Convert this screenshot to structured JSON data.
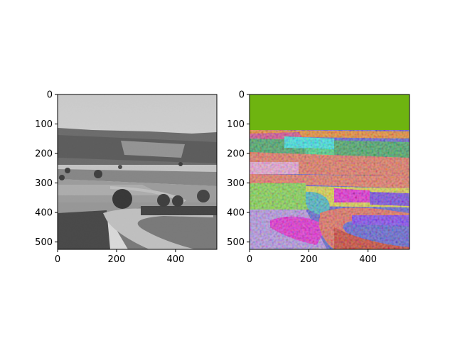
{
  "chart_data": [
    {
      "type": "image",
      "panel": "left",
      "content": "grayscale photograph of a rural landscape: bright sky, hillside vineyards, fields, trees and a winding road",
      "x_ticks": [
        0,
        200,
        400
      ],
      "y_ticks": [
        0,
        100,
        200,
        300,
        400,
        500
      ],
      "xlim": [
        0,
        540
      ],
      "ylim": [
        525,
        0
      ],
      "colormap": "gray"
    },
    {
      "type": "image",
      "panel": "right",
      "content": "segmentation map of the same scene with random colors per region",
      "x_ticks": [
        0,
        200,
        400
      ],
      "y_ticks": [
        0,
        100,
        200,
        300,
        400,
        500
      ],
      "xlim": [
        0,
        540
      ],
      "ylim": [
        525,
        0
      ],
      "region_colors": {
        "sky": "#6eb410",
        "tree_line": "#e8842a",
        "mid_field": "#e0705a",
        "left_field": "#7ed04a",
        "road": "#c83a2c",
        "magenta_patch": "#e020d0",
        "cyan_patch": "#30e0e0",
        "purple_patch": "#7040e0",
        "blue_patch": "#2f6fe0"
      }
    }
  ]
}
